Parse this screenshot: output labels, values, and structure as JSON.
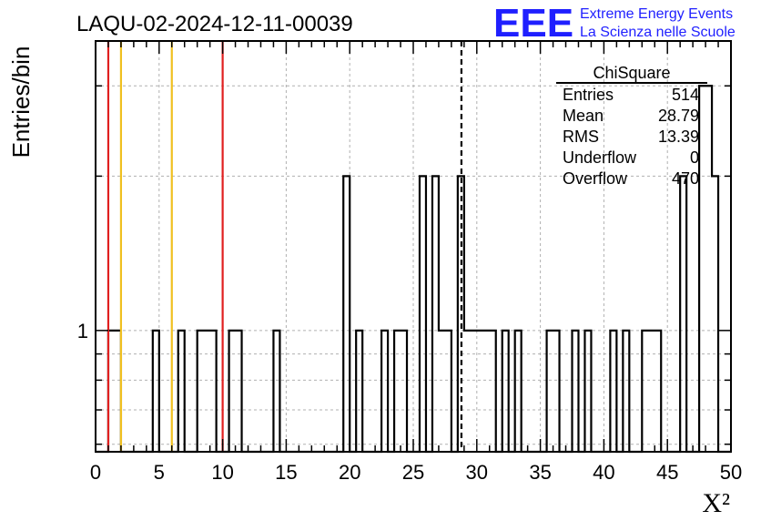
{
  "header": {
    "run_title": "LAQU-02-2024-12-11-00039",
    "logo_letters": "EEE",
    "logo_line1": "Extreme Energy Events",
    "logo_line2": "La Scienza nelle Scuole"
  },
  "chart_data": {
    "type": "bar",
    "title": "LAQU-02-2024-12-11-00039",
    "xlabel": "X²",
    "ylabel": "Entries/bin",
    "xlim": [
      0,
      50
    ],
    "ylim": [
      0.58,
      3.67
    ],
    "yscale": "log",
    "grid": true,
    "xticks": [
      0,
      5,
      10,
      15,
      20,
      25,
      30,
      35,
      40,
      45,
      50
    ],
    "yticks": [
      1
    ],
    "bin_width": 0.5,
    "bins": [
      {
        "x": 1.0,
        "y": 1
      },
      {
        "x": 1.5,
        "y": 1
      },
      {
        "x": 4.5,
        "y": 1
      },
      {
        "x": 6.5,
        "y": 1
      },
      {
        "x": 8.0,
        "y": 1
      },
      {
        "x": 8.5,
        "y": 1
      },
      {
        "x": 9.0,
        "y": 1
      },
      {
        "x": 10.5,
        "y": 1
      },
      {
        "x": 11.0,
        "y": 1
      },
      {
        "x": 14.0,
        "y": 1
      },
      {
        "x": 19.5,
        "y": 2
      },
      {
        "x": 20.5,
        "y": 1
      },
      {
        "x": 22.5,
        "y": 1
      },
      {
        "x": 23.5,
        "y": 1
      },
      {
        "x": 24.0,
        "y": 1
      },
      {
        "x": 25.5,
        "y": 2
      },
      {
        "x": 26.5,
        "y": 2
      },
      {
        "x": 27.0,
        "y": 1
      },
      {
        "x": 27.5,
        "y": 1
      },
      {
        "x": 28.5,
        "y": 2
      },
      {
        "x": 29.0,
        "y": 1
      },
      {
        "x": 29.5,
        "y": 1
      },
      {
        "x": 30.0,
        "y": 1
      },
      {
        "x": 30.5,
        "y": 1
      },
      {
        "x": 31.0,
        "y": 1
      },
      {
        "x": 32.0,
        "y": 1
      },
      {
        "x": 33.0,
        "y": 1
      },
      {
        "x": 35.5,
        "y": 1
      },
      {
        "x": 36.0,
        "y": 1
      },
      {
        "x": 37.5,
        "y": 1
      },
      {
        "x": 38.5,
        "y": 1
      },
      {
        "x": 40.5,
        "y": 1
      },
      {
        "x": 41.5,
        "y": 1
      },
      {
        "x": 43.0,
        "y": 1
      },
      {
        "x": 43.5,
        "y": 1
      },
      {
        "x": 44.0,
        "y": 1
      },
      {
        "x": 46.0,
        "y": 2
      },
      {
        "x": 47.5,
        "y": 3
      },
      {
        "x": 48.0,
        "y": 3
      },
      {
        "x": 48.5,
        "y": 2
      }
    ],
    "vertical_lines": [
      {
        "x": 1.0,
        "color": "#e02020",
        "style": "solid"
      },
      {
        "x": 2.0,
        "color": "#f0c020",
        "style": "solid"
      },
      {
        "x": 6.0,
        "color": "#f0c020",
        "style": "solid"
      },
      {
        "x": 10.0,
        "color": "#e02020",
        "style": "solid"
      },
      {
        "x": 28.79,
        "color": "#000000",
        "style": "dashed"
      }
    ],
    "stats_box": {
      "title": "ChiSquare",
      "rows": [
        {
          "label": "Entries",
          "value": "514"
        },
        {
          "label": "Mean",
          "value": "28.79"
        },
        {
          "label": "RMS",
          "value": "13.39"
        },
        {
          "label": "Underflow",
          "value": "0"
        },
        {
          "label": "Overflow",
          "value": "470"
        }
      ]
    }
  }
}
